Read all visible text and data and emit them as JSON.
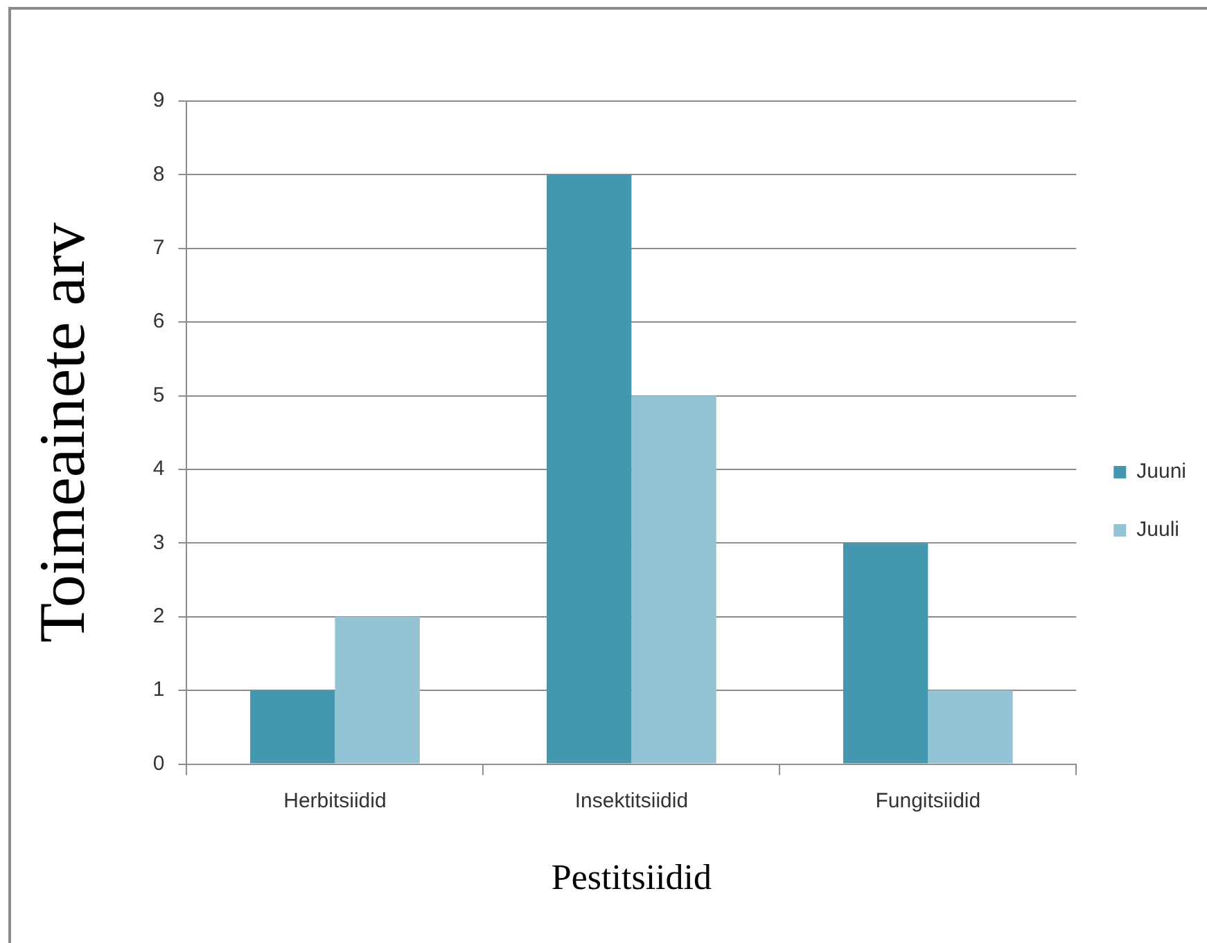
{
  "chart_data": {
    "type": "bar",
    "categories": [
      "Herbitsiidid",
      "Insektitsiidid",
      "Fungitsiidid"
    ],
    "series": [
      {
        "name": "Juuni",
        "color": "#4398b0",
        "values": [
          1,
          8,
          3
        ]
      },
      {
        "name": "Juuli",
        "color": "#93c3d4",
        "values": [
          2,
          5,
          1
        ]
      }
    ],
    "xlabel": "Pestitsiidid",
    "ylabel": "Toimeainete arv",
    "ylim": [
      0,
      9
    ],
    "yticks": [
      0,
      1,
      2,
      3,
      4,
      5,
      6,
      7,
      8,
      9
    ],
    "grid": "y",
    "legend": "right"
  }
}
